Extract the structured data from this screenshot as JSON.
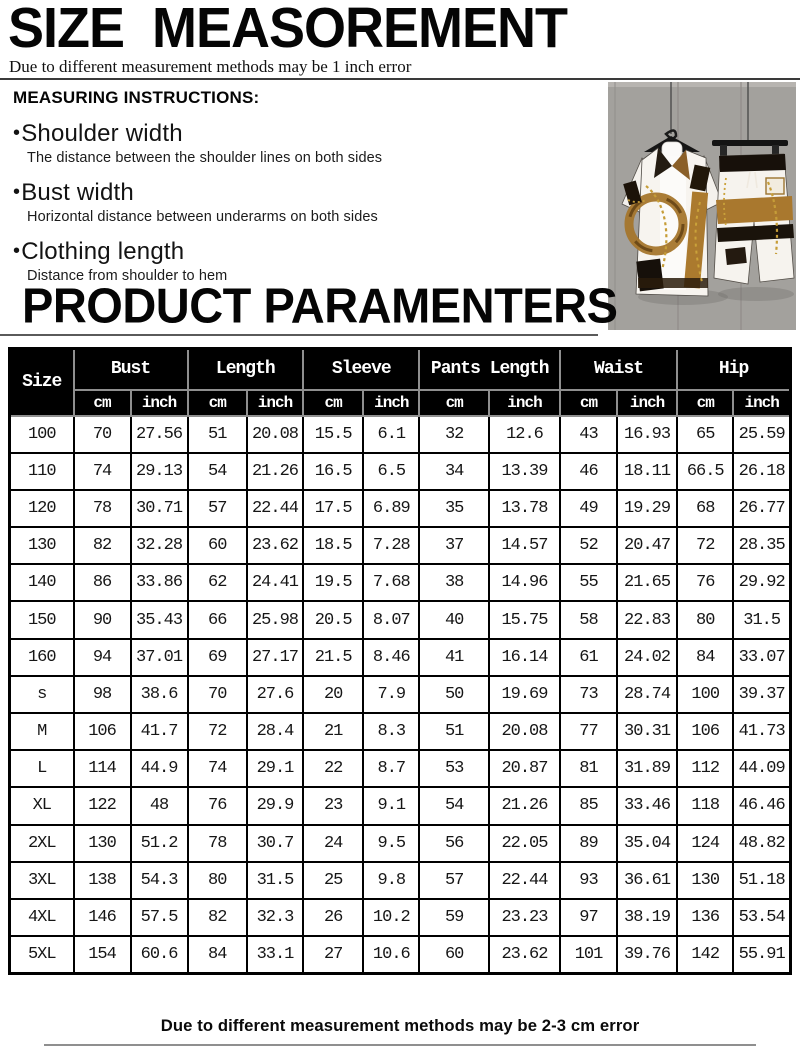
{
  "header": {
    "title": "SIZE  MEASOREMENT",
    "subtitle": "Due to different measurement methods may be 1 inch error",
    "instructions_title": "MEASURING INSTRUCTIONS:",
    "bullet": "•",
    "instructions": [
      {
        "label": "Shoulder width",
        "desc": "The distance between the shoulder lines on both sides"
      },
      {
        "label": "Bust width",
        "desc": "Horizontal distance between underarms on both sides"
      },
      {
        "label": "Clothing length",
        "desc": "Distance from shoulder to hem"
      }
    ],
    "product_title": "PRODUCT PARAMENTERS"
  },
  "product_image": {
    "description": "printed short-sleeve shirt and shorts set hanging on black hangers against gray panel wall"
  },
  "size_table": {
    "header_groups": [
      {
        "label": "Size",
        "colspan": 1,
        "rowspan": 2
      },
      {
        "label": "Bust",
        "colspan": 2
      },
      {
        "label": "Length",
        "colspan": 2
      },
      {
        "label": "Sleeve",
        "colspan": 2
      },
      {
        "label": "Pants Length",
        "colspan": 2
      },
      {
        "label": "Waist",
        "colspan": 2
      },
      {
        "label": "Hip",
        "colspan": 2
      }
    ],
    "sub_headers": [
      "cm",
      "inch",
      "cm",
      "inch",
      "cm",
      "inch",
      "cm",
      "inch",
      "cm",
      "inch",
      "cm",
      "inch"
    ],
    "rows": [
      {
        "size": "100",
        "values": [
          "70",
          "27.56",
          "51",
          "20.08",
          "15.5",
          "6.1",
          "32",
          "12.6",
          "43",
          "16.93",
          "65",
          "25.59"
        ]
      },
      {
        "size": "110",
        "values": [
          "74",
          "29.13",
          "54",
          "21.26",
          "16.5",
          "6.5",
          "34",
          "13.39",
          "46",
          "18.11",
          "66.5",
          "26.18"
        ]
      },
      {
        "size": "120",
        "values": [
          "78",
          "30.71",
          "57",
          "22.44",
          "17.5",
          "6.89",
          "35",
          "13.78",
          "49",
          "19.29",
          "68",
          "26.77"
        ]
      },
      {
        "size": "130",
        "values": [
          "82",
          "32.28",
          "60",
          "23.62",
          "18.5",
          "7.28",
          "37",
          "14.57",
          "52",
          "20.47",
          "72",
          "28.35"
        ]
      },
      {
        "size": "140",
        "values": [
          "86",
          "33.86",
          "62",
          "24.41",
          "19.5",
          "7.68",
          "38",
          "14.96",
          "55",
          "21.65",
          "76",
          "29.92"
        ]
      },
      {
        "size": "150",
        "values": [
          "90",
          "35.43",
          "66",
          "25.98",
          "20.5",
          "8.07",
          "40",
          "15.75",
          "58",
          "22.83",
          "80",
          "31.5"
        ]
      },
      {
        "size": "160",
        "values": [
          "94",
          "37.01",
          "69",
          "27.17",
          "21.5",
          "8.46",
          "41",
          "16.14",
          "61",
          "24.02",
          "84",
          "33.07"
        ]
      },
      {
        "size": "s",
        "values": [
          "98",
          "38.6",
          "70",
          "27.6",
          "20",
          "7.9",
          "50",
          "19.69",
          "73",
          "28.74",
          "100",
          "39.37"
        ]
      },
      {
        "size": "M",
        "values": [
          "106",
          "41.7",
          "72",
          "28.4",
          "21",
          "8.3",
          "51",
          "20.08",
          "77",
          "30.31",
          "106",
          "41.73"
        ]
      },
      {
        "size": "L",
        "values": [
          "114",
          "44.9",
          "74",
          "29.1",
          "22",
          "8.7",
          "53",
          "20.87",
          "81",
          "31.89",
          "112",
          "44.09"
        ]
      },
      {
        "size": "XL",
        "values": [
          "122",
          "48",
          "76",
          "29.9",
          "23",
          "9.1",
          "54",
          "21.26",
          "85",
          "33.46",
          "118",
          "46.46"
        ]
      },
      {
        "size": "2XL",
        "values": [
          "130",
          "51.2",
          "78",
          "30.7",
          "24",
          "9.5",
          "56",
          "22.05",
          "89",
          "35.04",
          "124",
          "48.82"
        ]
      },
      {
        "size": "3XL",
        "values": [
          "138",
          "54.3",
          "80",
          "31.5",
          "25",
          "9.8",
          "57",
          "22.44",
          "93",
          "36.61",
          "130",
          "51.18"
        ]
      },
      {
        "size": "4XL",
        "values": [
          "146",
          "57.5",
          "82",
          "32.3",
          "26",
          "10.2",
          "59",
          "23.23",
          "97",
          "38.19",
          "136",
          "53.54"
        ]
      },
      {
        "size": "5XL",
        "values": [
          "154",
          "60.6",
          "84",
          "33.1",
          "27",
          "10.6",
          "60",
          "23.62",
          "101",
          "39.76",
          "142",
          "55.91"
        ]
      }
    ]
  },
  "footer": {
    "note": "Due to different measurement methods may be 2-3 cm error"
  },
  "colors": {
    "table_header_bg": "#000000",
    "table_header_text": "#ffffff",
    "table_border": "#000000",
    "wall_gray": "#a7a4a1",
    "print_brown": "#a5762c",
    "print_gold": "#c69d38",
    "print_black": "#1a130b"
  }
}
